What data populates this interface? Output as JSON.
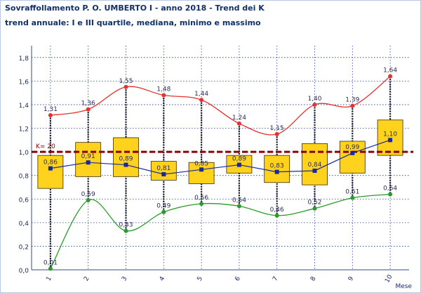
{
  "title": "Sovraffollamento P. O. UMBERTO I - anno 2018 - Trend dei K",
  "subtitle": "trend annuale: I e III quartile, mediana, minimo e massimo",
  "chart_data": {
    "type": "boxplot",
    "categories": [
      "1",
      "2",
      "3",
      "4",
      "5",
      "6",
      "7",
      "8",
      "9",
      "10"
    ],
    "xlabel": "Mese",
    "ylabel": "",
    "ylim": [
      0,
      1.9
    ],
    "yticks": [
      "0,0",
      "0,2",
      "0,4",
      "0,6",
      "0,8",
      "1,0",
      "1,2",
      "1,4",
      "1,6",
      "1,8"
    ],
    "grid": true,
    "reference_line": {
      "label": "K= 20",
      "value": 1.0,
      "color": "#8b0000"
    },
    "series": [
      {
        "name": "massimo",
        "color": "#e83030",
        "values": [
          1.31,
          1.36,
          1.55,
          1.48,
          1.44,
          1.24,
          1.15,
          1.4,
          1.39,
          1.64
        ],
        "labels": [
          "1,31",
          "1,36",
          "1,55",
          "1,48",
          "1,44",
          "1,24",
          "1,15",
          "1,40",
          "1,39",
          "1,64"
        ]
      },
      {
        "name": "mediana",
        "color": "#1a2a9a",
        "values": [
          0.86,
          0.91,
          0.89,
          0.81,
          0.85,
          0.89,
          0.83,
          0.84,
          0.99,
          1.1
        ],
        "labels": [
          "0,86",
          "0,91",
          "0,89",
          "0,81",
          "0,85",
          "0,89",
          "0,83",
          "0,84",
          "0,99",
          "1,10"
        ]
      },
      {
        "name": "minimo",
        "color": "#2a9a2a",
        "values": [
          0.01,
          0.59,
          0.33,
          0.49,
          0.56,
          0.54,
          0.46,
          0.52,
          0.61,
          0.64
        ],
        "labels": [
          "0,01",
          "0,59",
          "0,33",
          "0,49",
          "0,56",
          "0,54",
          "0,46",
          "0,52",
          "0,61",
          "0,64"
        ]
      }
    ],
    "q1": [
      0.69,
      0.79,
      0.79,
      0.76,
      0.73,
      0.82,
      0.74,
      0.72,
      0.82,
      0.97
    ],
    "q3": [
      0.97,
      1.08,
      1.12,
      0.92,
      0.91,
      0.97,
      0.97,
      1.07,
      1.09,
      1.27
    ],
    "box_color": "#ffd21e"
  }
}
